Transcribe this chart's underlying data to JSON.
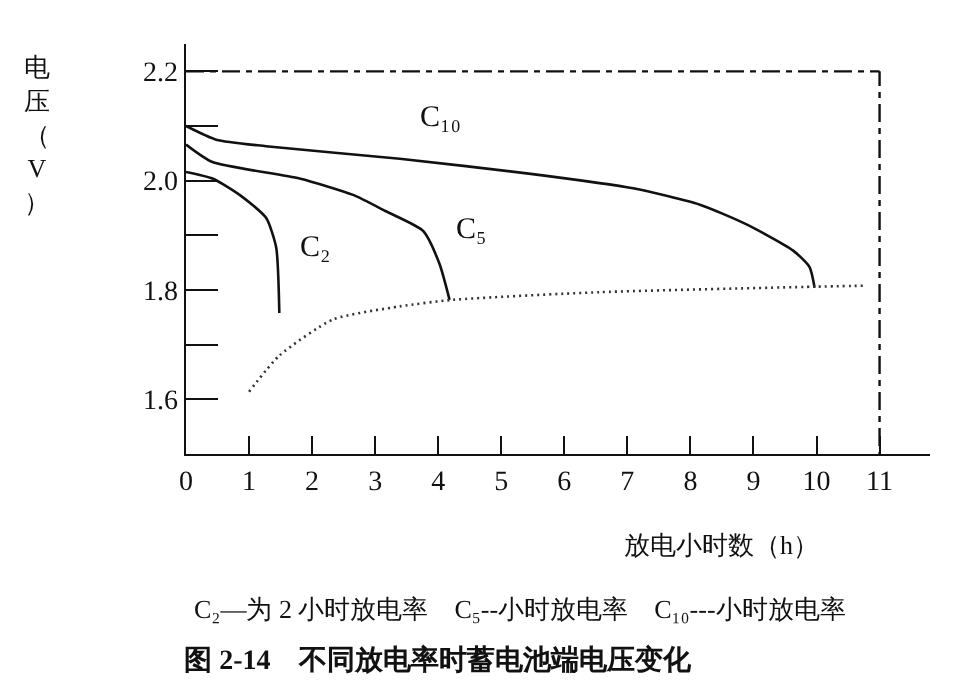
{
  "chart_data": {
    "type": "line",
    "title": "图 2-14    不同放电率时蓄电池端电压变化",
    "xlabel": "放电小时数（h）",
    "ylabel": "电压（V）",
    "xlim": [
      0,
      11.8
    ],
    "xticks": [
      0,
      1,
      2,
      3,
      4,
      5,
      6,
      7,
      8,
      9,
      10,
      11
    ],
    "ylim": [
      1.5,
      2.25
    ],
    "yticks": [
      1.6,
      {
        "value": 1.7,
        "label": null
      },
      1.8,
      {
        "value": 1.9,
        "label": null
      },
      {
        "value": 2.0,
        "label": "2.0"
      },
      {
        "value": 2.1,
        "label": null
      },
      2.2
    ],
    "grid": false,
    "legend": false,
    "marker": "none",
    "series": [
      {
        "name": "C₁₀",
        "color": "#111111",
        "x": [
          0,
          0.48,
          1.27,
          3.39,
          5.5,
          7.09,
          8.15,
          8.89,
          9.63,
          9.89,
          9.97
        ],
        "values": [
          2.1,
          2.075,
          2.063,
          2.04,
          2.012,
          1.986,
          1.956,
          1.92,
          1.872,
          1.842,
          1.804
        ]
      },
      {
        "name": "C₅",
        "color": "#111111",
        "x": [
          0,
          0.42,
          1.8,
          2.65,
          3.17,
          3.76,
          4.02,
          4.18
        ],
        "values": [
          2.066,
          2.034,
          2.004,
          1.974,
          1.944,
          1.908,
          1.848,
          1.782
        ]
      },
      {
        "name": "C₂",
        "color": "#111111",
        "x": [
          0,
          0.42,
          0.85,
          1.27,
          1.43,
          1.48
        ],
        "values": [
          2.016,
          2.004,
          1.974,
          1.932,
          1.878,
          1.758
        ]
      },
      {
        "color": "#333333",
        "line_style": "dotted",
        "x": [
          1.0,
          1.48,
          2.33,
          3.39,
          4.23,
          6.56,
          9.95,
          10.8
        ],
        "values": [
          1.614,
          1.68,
          1.746,
          1.77,
          1.782,
          1.796,
          1.806,
          1.808
        ]
      }
    ],
    "ref_lines": [
      {
        "axis": "y",
        "value": 2.2,
        "line_style": "dashed",
        "color": "#111111"
      },
      {
        "axis": "x",
        "value": 11,
        "line_style": "dashed",
        "color": "#111111"
      }
    ],
    "annotations": [
      "C₂—为 2 小时放电率    C₅--小时放电率    C₁₀---小时放电率"
    ]
  }
}
